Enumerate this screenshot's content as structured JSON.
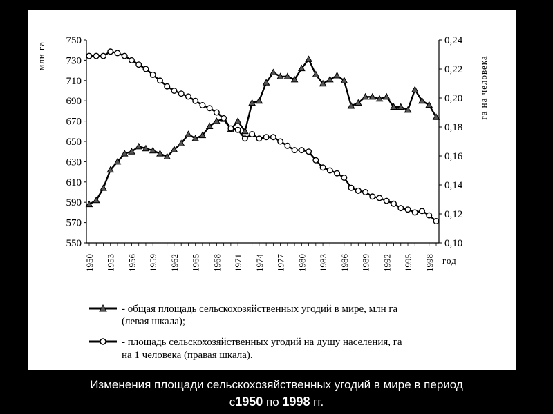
{
  "chart_data": {
    "type": "line",
    "x_axis": {
      "label": "год",
      "range": [
        1950,
        1999
      ],
      "ticks": [
        "1950",
        "1953",
        "1956",
        "1959",
        "1962",
        "1965",
        "1968",
        "1971",
        "1974",
        "1977",
        "1980",
        "1983",
        "1986",
        "1989",
        "1992",
        "1995",
        "1998"
      ]
    },
    "y_left": {
      "label": "млн га",
      "range": [
        550,
        750
      ],
      "ticks": [
        "550",
        "570",
        "590",
        "610",
        "630",
        "650",
        "670",
        "690",
        "710",
        "730",
        "750"
      ]
    },
    "y_right": {
      "label": "га на человека",
      "range": [
        0.1,
        0.24
      ],
      "ticks": [
        "0,10",
        "0,12",
        "0,14",
        "0,16",
        "0,18",
        "0,20",
        "0,22",
        "0,24"
      ]
    },
    "series": [
      {
        "name": "общая площадь сельскохозяйственных угодий в мире, млн га (левая шкала)",
        "axis": "left",
        "marker": "filled-triangle",
        "x": [
          1950,
          1951,
          1952,
          1953,
          1954,
          1955,
          1956,
          1957,
          1958,
          1959,
          1960,
          1961,
          1962,
          1963,
          1964,
          1965,
          1966,
          1967,
          1968,
          1969,
          1970,
          1971,
          1972,
          1973,
          1974,
          1975,
          1976,
          1977,
          1978,
          1979,
          1980,
          1981,
          1982,
          1983,
          1984,
          1985,
          1986,
          1987,
          1988,
          1989,
          1990,
          1991,
          1992,
          1993,
          1994,
          1995,
          1996,
          1997,
          1998,
          1999
        ],
        "y": [
          588,
          592,
          604,
          622,
          630,
          638,
          640,
          645,
          643,
          641,
          638,
          635,
          642,
          648,
          657,
          653,
          656,
          665,
          670,
          672,
          662,
          670,
          660,
          688,
          690,
          708,
          718,
          714,
          714,
          711,
          722,
          731,
          716,
          707,
          711,
          715,
          710,
          685,
          688,
          694,
          694,
          692,
          694,
          684,
          684,
          681,
          701,
          690,
          686,
          674
        ]
      },
      {
        "name": "площадь сельскохозяйственных угодий на душу населения, га на 1 человека (правая шкала)",
        "axis": "right",
        "marker": "open-circle",
        "x": [
          1950,
          1951,
          1952,
          1953,
          1954,
          1955,
          1956,
          1957,
          1958,
          1959,
          1960,
          1961,
          1962,
          1963,
          1964,
          1965,
          1966,
          1967,
          1968,
          1969,
          1970,
          1971,
          1972,
          1973,
          1974,
          1975,
          1976,
          1977,
          1978,
          1979,
          1980,
          1981,
          1982,
          1983,
          1984,
          1985,
          1986,
          1987,
          1988,
          1989,
          1990,
          1991,
          1992,
          1993,
          1994,
          1995,
          1996,
          1997,
          1998,
          1999
        ],
        "y": [
          0.229,
          0.229,
          0.229,
          0.232,
          0.231,
          0.229,
          0.226,
          0.223,
          0.22,
          0.216,
          0.212,
          0.208,
          0.205,
          0.203,
          0.201,
          0.198,
          0.195,
          0.193,
          0.19,
          0.186,
          0.179,
          0.178,
          0.172,
          0.175,
          0.172,
          0.173,
          0.173,
          0.17,
          0.167,
          0.164,
          0.164,
          0.163,
          0.157,
          0.152,
          0.15,
          0.148,
          0.145,
          0.138,
          0.136,
          0.135,
          0.132,
          0.131,
          0.129,
          0.127,
          0.124,
          0.123,
          0.121,
          0.122,
          0.119,
          0.115
        ]
      }
    ],
    "grid": false
  },
  "legend": {
    "item1": "- общая площадь сельскохозяйственных угодий в мире, млн га",
    "item1_cont": "(левая шкала);",
    "item2": "- площадь сельскохозяйственных угодий на душу населения, га",
    "item2_cont": "на 1 человека (правая шкала)."
  },
  "caption": {
    "line1": "Изменения площади сельскохозяйственных угодий в мире в период",
    "line2_prefix": "с",
    "year_start": "1950",
    "mid": " по ",
    "year_end": "1998",
    "suffix": " гг."
  },
  "colors": {
    "background": "#000000",
    "panel": "#ffffff",
    "ink": "#000000",
    "caption": "#ffffff"
  }
}
